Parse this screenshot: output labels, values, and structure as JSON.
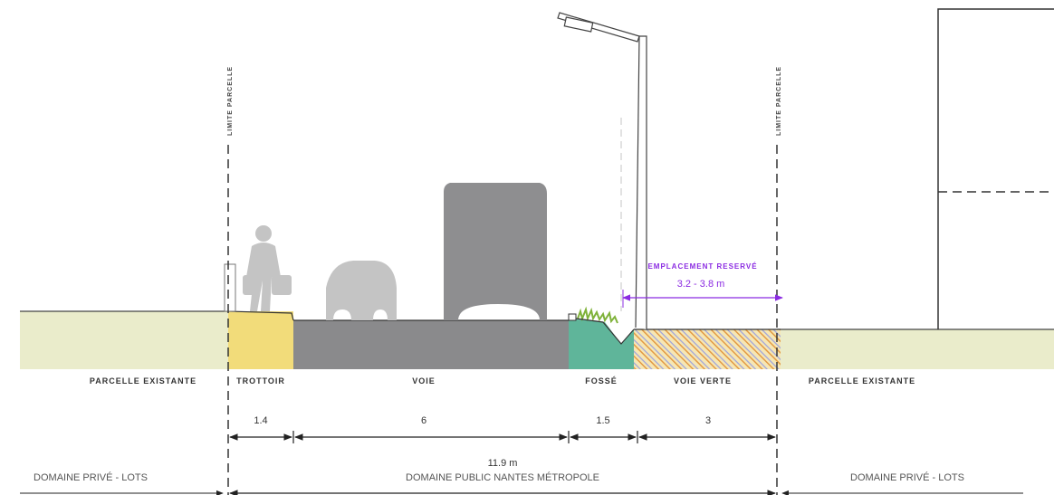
{
  "limits": {
    "left_label": "LIMITE PARCELLE",
    "right_label": "LIMITE PARCELLE"
  },
  "reserve": {
    "label": "EMPLACEMENT RESERVÉ",
    "width": "3.2 - 3.8 m",
    "color": "#8b2be2"
  },
  "zones": {
    "parcelle_left": "PARCELLE EXISTANTE",
    "trottoir": "TROTTOIR",
    "voie": "VOIE",
    "fosse": "FOSSÉ",
    "voie_verte": "VOIE VERTE",
    "parcelle_right": "PARCELLE EXISTANTE"
  },
  "dimensions": {
    "trottoir": "1.4",
    "voie": "6",
    "fosse": "1.5",
    "voie_verte": "3",
    "total": "11.9 m"
  },
  "domains": {
    "prive_left": "DOMAINE PRIVÉ - LOTS",
    "public": "DOMAINE PUBLIC NANTES MÉTROPOLE",
    "prive_right": "DOMAINE PRIVÉ - LOTS"
  },
  "colors": {
    "ground": "#eaeccb",
    "trottoir": "#f2dc7a",
    "voie": "#8a8a8c",
    "fosse": "#5fb59a",
    "hatch": "#e8a24a",
    "vehicles": "#c4c4c4",
    "bus": "#8e8e90"
  }
}
